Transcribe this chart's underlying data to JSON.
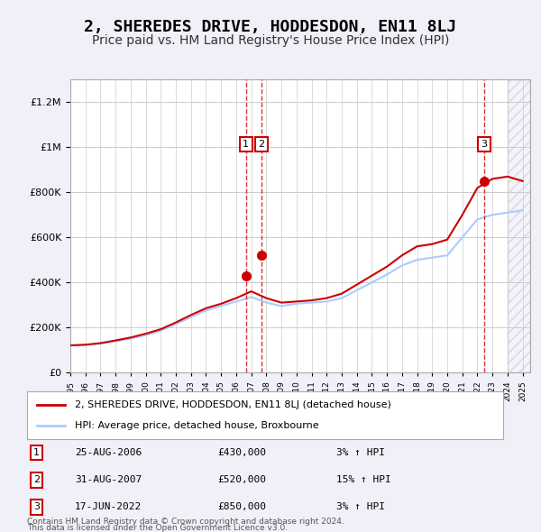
{
  "title": "2, SHEREDES DRIVE, HODDESDON, EN11 8LJ",
  "subtitle": "Price paid vs. HM Land Registry's House Price Index (HPI)",
  "ylabel_ticks": [
    "£0",
    "£200K",
    "£400K",
    "£600K",
    "£800K",
    "£1M",
    "£1.2M"
  ],
  "ytick_values": [
    0,
    200000,
    400000,
    600000,
    800000,
    1000000,
    1200000
  ],
  "ylim": [
    0,
    1300000
  ],
  "xlim_start": 1995.0,
  "xlim_end": 2025.5,
  "bg_color": "#f0f0f8",
  "plot_bg_color": "#ffffff",
  "grid_color": "#cccccc",
  "hpi_line_color": "#aaccff",
  "price_line_color": "#cc0000",
  "sale_marker_color": "#cc0000",
  "sale_vline_color": "#cc0000",
  "title_fontsize": 13,
  "subtitle_fontsize": 10,
  "x_years": [
    1995,
    1996,
    1997,
    1998,
    1999,
    2000,
    2001,
    2002,
    2003,
    2004,
    2005,
    2006,
    2007,
    2008,
    2009,
    2010,
    2011,
    2012,
    2013,
    2014,
    2015,
    2016,
    2017,
    2018,
    2019,
    2020,
    2021,
    2022,
    2023,
    2024,
    2025
  ],
  "hpi_values": [
    120000,
    122000,
    128000,
    138000,
    150000,
    165000,
    185000,
    215000,
    245000,
    275000,
    295000,
    315000,
    335000,
    310000,
    295000,
    305000,
    310000,
    315000,
    330000,
    365000,
    400000,
    435000,
    475000,
    500000,
    510000,
    520000,
    600000,
    680000,
    700000,
    710000,
    720000
  ],
  "price_values": [
    120000,
    123000,
    130000,
    142000,
    155000,
    172000,
    192000,
    222000,
    255000,
    285000,
    305000,
    330000,
    360000,
    330000,
    310000,
    315000,
    320000,
    330000,
    350000,
    390000,
    430000,
    470000,
    520000,
    560000,
    570000,
    590000,
    700000,
    820000,
    860000,
    870000,
    850000
  ],
  "sales": [
    {
      "date": "25-AUG-2006",
      "year": 2006.65,
      "price": 430000,
      "label": "1",
      "pct": "3%",
      "direction": "↑"
    },
    {
      "date": "31-AUG-2007",
      "year": 2007.67,
      "price": 520000,
      "label": "2",
      "pct": "15%",
      "direction": "↑"
    },
    {
      "date": "17-JUN-2022",
      "year": 2022.46,
      "price": 850000,
      "label": "3",
      "pct": "3%",
      "direction": "↑"
    }
  ],
  "legend_line1": "2, SHEREDES DRIVE, HODDESDON, EN11 8LJ (detached house)",
  "legend_line2": "HPI: Average price, detached house, Broxbourne",
  "footer1": "Contains HM Land Registry data © Crown copyright and database right 2024.",
  "footer2": "This data is licensed under the Open Government Licence v3.0.",
  "hatching_start": 2024.0,
  "hatching_end": 2025.5
}
